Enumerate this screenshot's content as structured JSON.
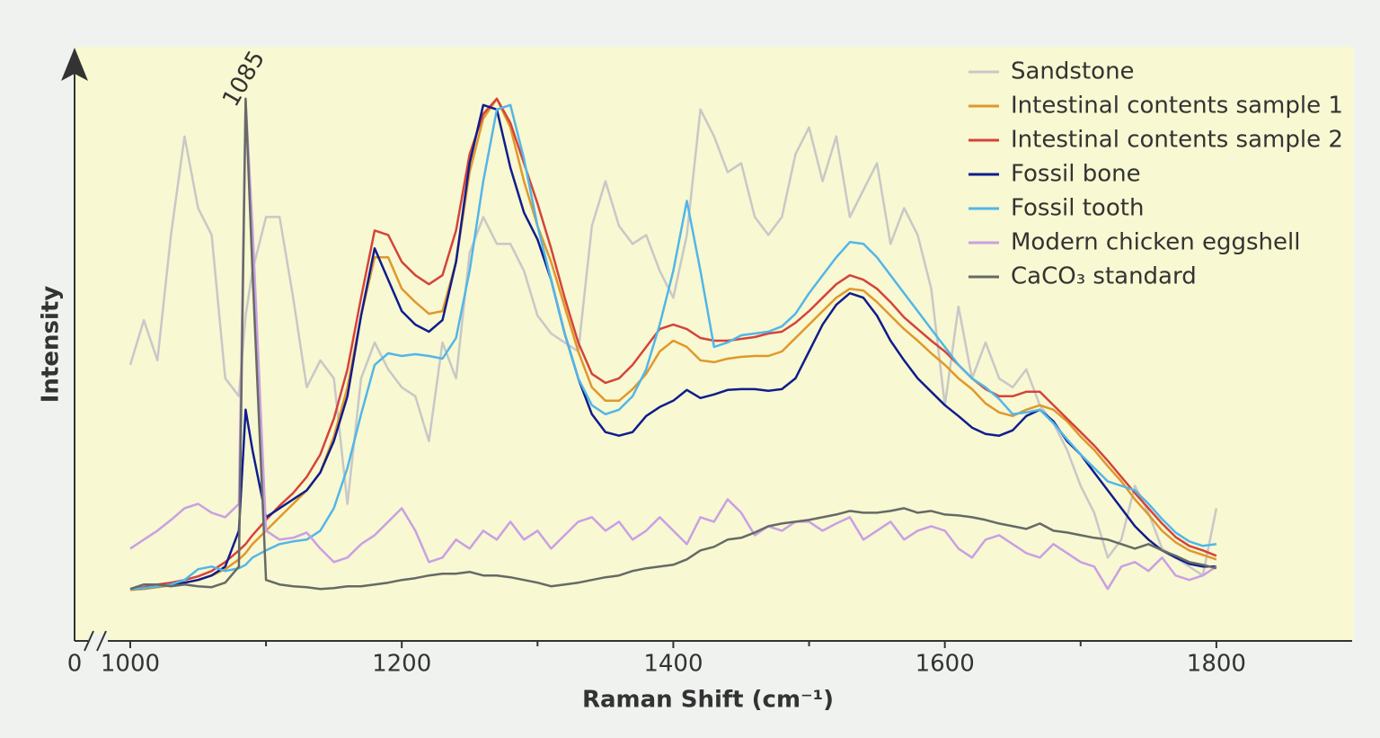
{
  "chart_data": {
    "type": "line",
    "x_axis_label": "Raman Shift (cm⁻¹)",
    "y_axis_label": "Intensity",
    "x_origin_label": "0",
    "annotations": [
      {
        "text": "1085"
      }
    ],
    "xlim": [
      959,
      1900
    ],
    "xticks": [
      1000,
      1200,
      1400,
      1600,
      1800
    ],
    "xminorticks": [
      1100,
      1300,
      1500,
      1700
    ],
    "ylim": [
      0,
      660
    ],
    "legend": "upper right",
    "x": [
      1000,
      1010,
      1020,
      1030,
      1040,
      1050,
      1060,
      1070,
      1080,
      1085,
      1090,
      1100,
      1110,
      1120,
      1130,
      1140,
      1150,
      1160,
      1170,
      1180,
      1190,
      1200,
      1210,
      1220,
      1230,
      1240,
      1250,
      1260,
      1270,
      1280,
      1290,
      1300,
      1310,
      1320,
      1330,
      1340,
      1350,
      1360,
      1370,
      1380,
      1390,
      1400,
      1410,
      1420,
      1430,
      1440,
      1450,
      1460,
      1470,
      1480,
      1490,
      1500,
      1510,
      1520,
      1530,
      1540,
      1550,
      1560,
      1570,
      1580,
      1590,
      1600,
      1610,
      1620,
      1630,
      1640,
      1650,
      1660,
      1670,
      1680,
      1690,
      1700,
      1710,
      1720,
      1730,
      1740,
      1750,
      1760,
      1770,
      1780,
      1790,
      1800
    ],
    "series": [
      {
        "name": "Sandstone",
        "color": "#c8c8c8",
        "values": [
          308,
          358,
          313,
          453,
          563,
          483,
          453,
          293,
          273,
          363,
          413,
          473,
          473,
          383,
          283,
          313,
          293,
          153,
          293,
          333,
          303,
          283,
          273,
          223,
          333,
          293,
          433,
          473,
          443,
          443,
          413,
          363,
          343,
          333,
          323,
          463,
          513,
          463,
          443,
          453,
          413,
          383,
          453,
          593,
          563,
          523,
          533,
          473,
          453,
          473,
          543,
          573,
          513,
          563,
          473,
          503,
          533,
          443,
          483,
          453,
          393,
          263,
          373,
          293,
          333,
          293,
          283,
          303,
          263,
          243,
          213,
          173,
          143,
          93,
          113,
          173,
          143,
          103,
          93,
          83,
          73,
          148
        ]
      },
      {
        "name": "Intestinal contents sample 1",
        "color": "#e0982c",
        "values": [
          57,
          58,
          60,
          62,
          65,
          68,
          73,
          80,
          91,
          98,
          108,
          123,
          138,
          153,
          168,
          188,
          228,
          283,
          363,
          428,
          428,
          393,
          378,
          365,
          368,
          423,
          523,
          583,
          605,
          573,
          513,
          463,
          423,
          373,
          323,
          283,
          268,
          268,
          281,
          298,
          323,
          335,
          328,
          313,
          311,
          315,
          317,
          318,
          318,
          323,
          338,
          353,
          368,
          383,
          393,
          391,
          378,
          363,
          348,
          335,
          321,
          308,
          293,
          281,
          265,
          255,
          251,
          258,
          263,
          258,
          245,
          228,
          213,
          195,
          178,
          158,
          141,
          123,
          110,
          101,
          96,
          91
        ]
      },
      {
        "name": "Intestinal contents sample 2",
        "color": "#d4443c",
        "values": [
          58,
          60,
          63,
          65,
          68,
          72,
          78,
          88,
          101,
          108,
          118,
          135,
          151,
          165,
          183,
          208,
          248,
          303,
          383,
          458,
          453,
          423,
          408,
          398,
          408,
          458,
          543,
          588,
          605,
          578,
          533,
          488,
          438,
          383,
          333,
          298,
          288,
          293,
          308,
          328,
          348,
          353,
          348,
          338,
          335,
          335,
          337,
          339,
          343,
          345,
          355,
          368,
          383,
          398,
          408,
          403,
          393,
          378,
          361,
          348,
          335,
          323,
          308,
          293,
          281,
          273,
          273,
          278,
          278,
          263,
          248,
          233,
          218,
          201,
          183,
          165,
          148,
          131,
          116,
          106,
          101,
          95
        ]
      },
      {
        "name": "Fossil bone",
        "color": "#101c8e",
        "values": [
          58,
          59,
          61,
          63,
          65,
          68,
          73,
          83,
          123,
          258,
          213,
          138,
          148,
          158,
          168,
          188,
          223,
          273,
          363,
          438,
          403,
          368,
          353,
          345,
          358,
          423,
          533,
          598,
          593,
          528,
          478,
          448,
          403,
          343,
          293,
          253,
          233,
          229,
          233,
          251,
          261,
          268,
          280,
          271,
          275,
          280,
          281,
          281,
          279,
          281,
          293,
          323,
          353,
          375,
          388,
          383,
          363,
          335,
          313,
          293,
          278,
          263,
          251,
          238,
          231,
          229,
          235,
          251,
          258,
          245,
          223,
          208,
          188,
          168,
          148,
          128,
          113,
          101,
          93,
          86,
          83,
          83
        ]
      },
      {
        "name": "Fossil tooth",
        "color": "#52b6e8",
        "values": [
          58,
          59,
          61,
          63,
          68,
          80,
          83,
          78,
          81,
          85,
          93,
          101,
          108,
          111,
          113,
          123,
          148,
          193,
          253,
          308,
          321,
          318,
          320,
          318,
          315,
          338,
          413,
          513,
          593,
          598,
          538,
          463,
          403,
          343,
          293,
          263,
          253,
          258,
          273,
          303,
          353,
          413,
          491,
          413,
          328,
          333,
          341,
          343,
          345,
          351,
          365,
          388,
          408,
          428,
          445,
          443,
          428,
          408,
          388,
          368,
          348,
          328,
          308,
          293,
          283,
          270,
          253,
          255,
          258,
          243,
          225,
          208,
          193,
          178,
          173,
          168,
          153,
          136,
          121,
          111,
          106,
          108
        ]
      },
      {
        "name": "Modern chicken eggshell",
        "color": "#c9a0e4",
        "values": [
          103,
          113,
          123,
          135,
          148,
          153,
          143,
          138,
          153,
          603,
          463,
          123,
          113,
          115,
          121,
          103,
          88,
          93,
          108,
          118,
          133,
          148,
          123,
          88,
          93,
          113,
          103,
          123,
          113,
          133,
          113,
          123,
          103,
          118,
          133,
          138,
          123,
          133,
          113,
          123,
          138,
          123,
          108,
          138,
          133,
          158,
          143,
          118,
          128,
          123,
          133,
          133,
          123,
          131,
          138,
          113,
          123,
          133,
          113,
          123,
          128,
          123,
          103,
          93,
          113,
          118,
          108,
          98,
          93,
          108,
          98,
          88,
          83,
          58,
          83,
          88,
          78,
          93,
          73,
          68,
          73,
          83
        ]
      },
      {
        "name": "CaCO₃ standard",
        "color": "#666a66",
        "values": [
          58,
          63,
          63,
          61,
          63,
          61,
          60,
          65,
          83,
          605,
          413,
          68,
          63,
          61,
          60,
          58,
          59,
          61,
          61,
          63,
          65,
          68,
          70,
          73,
          75,
          75,
          77,
          73,
          73,
          71,
          68,
          65,
          61,
          63,
          65,
          68,
          71,
          73,
          78,
          81,
          83,
          85,
          91,
          101,
          105,
          113,
          115,
          121,
          128,
          131,
          133,
          135,
          138,
          141,
          145,
          143,
          143,
          145,
          148,
          143,
          145,
          141,
          140,
          138,
          135,
          131,
          128,
          125,
          131,
          123,
          121,
          118,
          115,
          113,
          108,
          103,
          108,
          101,
          95,
          88,
          85,
          81
        ]
      }
    ]
  }
}
